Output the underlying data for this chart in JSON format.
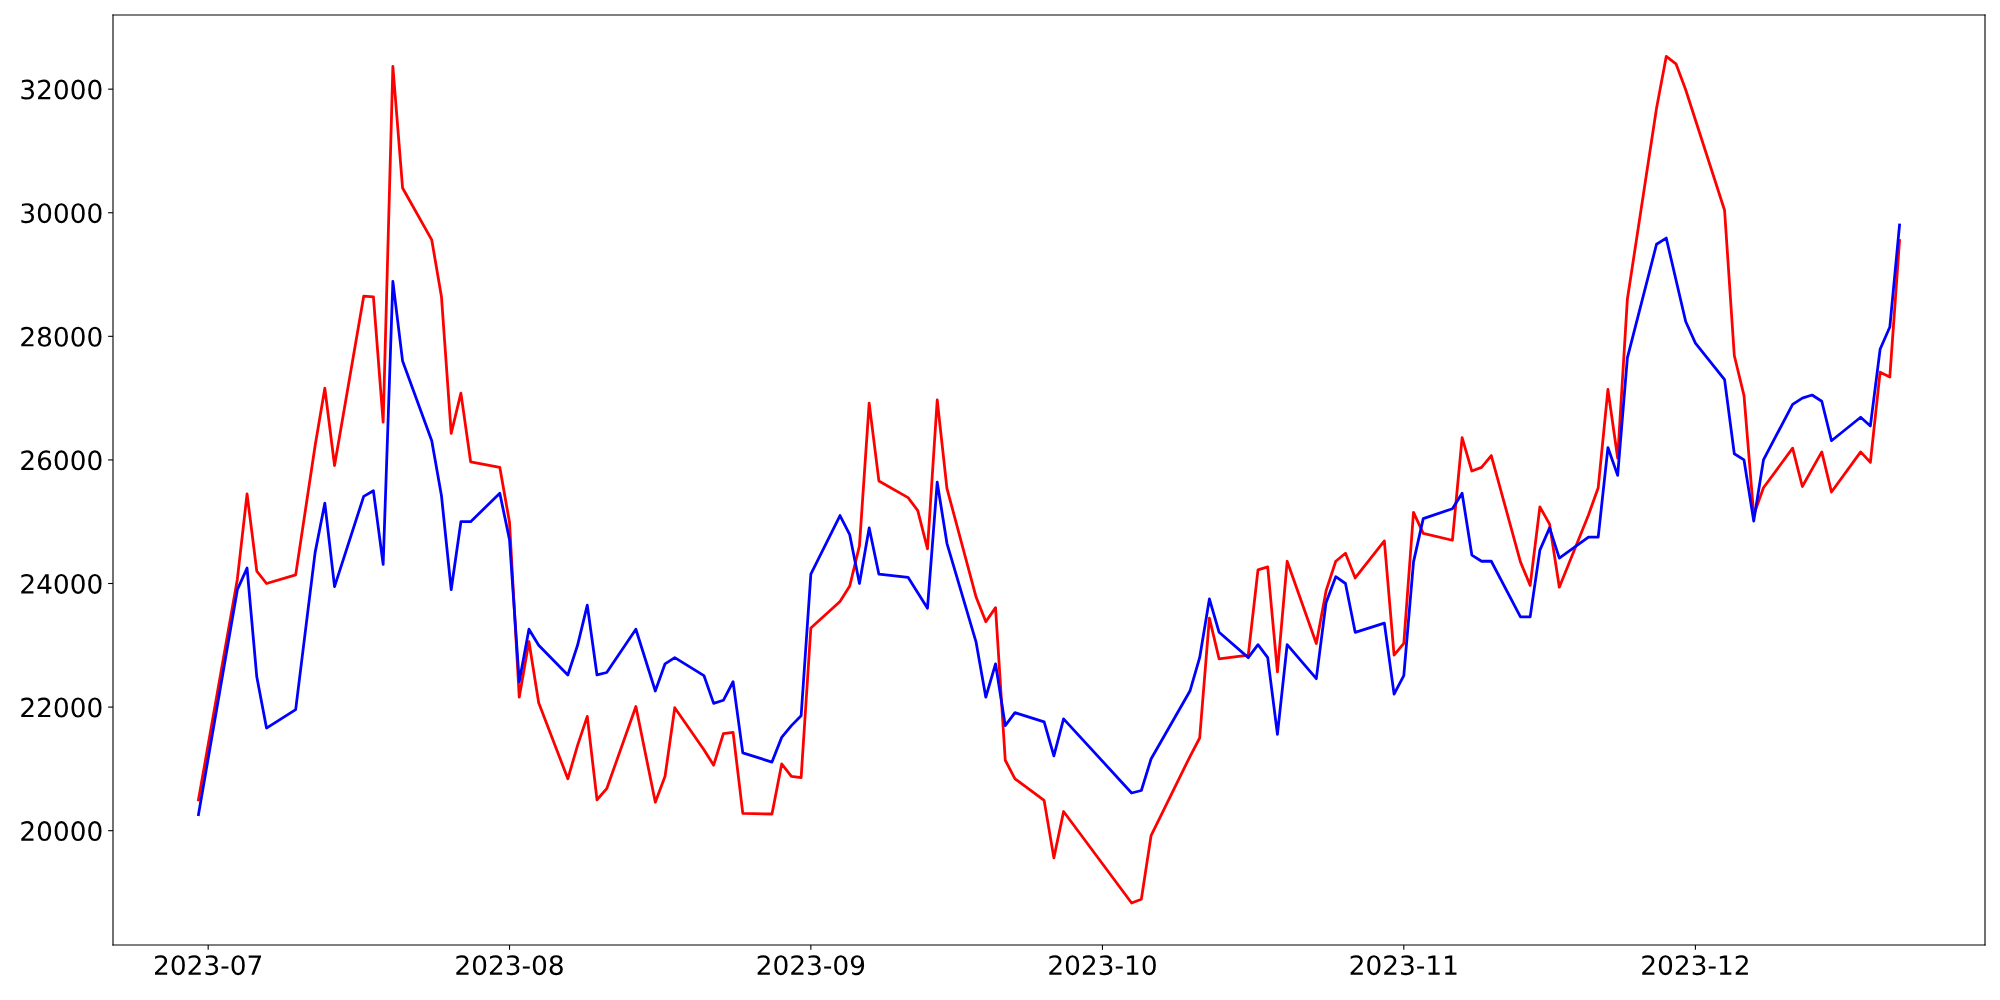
{
  "chart_data": {
    "type": "line",
    "xlim": [
      "2023-06-21T05:00",
      "2023-12-30T19:00"
    ],
    "ylim": [
      18150,
      33200
    ],
    "xticks": [
      "2023-07",
      "2023-08",
      "2023-09",
      "2023-10",
      "2023-11",
      "2023-12"
    ],
    "yticks": [
      20000,
      22000,
      24000,
      26000,
      28000,
      30000,
      32000
    ],
    "marker": "none",
    "line_style": "solid",
    "series": [
      {
        "color": "#ff0000",
        "x": [
          "2023-06-30",
          "2023-07-04",
          "2023-07-05",
          "2023-07-06",
          "2023-07-07",
          "2023-07-10",
          "2023-07-12",
          "2023-07-13",
          "2023-07-14",
          "2023-07-17",
          "2023-07-18",
          "2023-07-19",
          "2023-07-20",
          "2023-07-21",
          "2023-07-24",
          "2023-07-25",
          "2023-07-26",
          "2023-07-27",
          "2023-07-28",
          "2023-07-31",
          "2023-08-01",
          "2023-08-02",
          "2023-08-03",
          "2023-08-04",
          "2023-08-07",
          "2023-08-08",
          "2023-08-09",
          "2023-08-10",
          "2023-08-11",
          "2023-08-14",
          "2023-08-16",
          "2023-08-17",
          "2023-08-18",
          "2023-08-21",
          "2023-08-22",
          "2023-08-23",
          "2023-08-24",
          "2023-08-25",
          "2023-08-28",
          "2023-08-29",
          "2023-08-30",
          "2023-08-31",
          "2023-09-01",
          "2023-09-04",
          "2023-09-05",
          "2023-09-06",
          "2023-09-07",
          "2023-09-08",
          "2023-09-11",
          "2023-09-12",
          "2023-09-13",
          "2023-09-14",
          "2023-09-15",
          "2023-09-18",
          "2023-09-19",
          "2023-09-20",
          "2023-09-21",
          "2023-09-22",
          "2023-09-25",
          "2023-09-26",
          "2023-09-27",
          "2023-10-04",
          "2023-10-05",
          "2023-10-06",
          "2023-10-10",
          "2023-10-11",
          "2023-10-12",
          "2023-10-13",
          "2023-10-16",
          "2023-10-17",
          "2023-10-18",
          "2023-10-19",
          "2023-10-20",
          "2023-10-23",
          "2023-10-24",
          "2023-10-25",
          "2023-10-26",
          "2023-10-27",
          "2023-10-30",
          "2023-10-31",
          "2023-11-01",
          "2023-11-02",
          "2023-11-03",
          "2023-11-06",
          "2023-11-07",
          "2023-11-08",
          "2023-11-09",
          "2023-11-10",
          "2023-11-13",
          "2023-11-14",
          "2023-11-15",
          "2023-11-16",
          "2023-11-17",
          "2023-11-20",
          "2023-11-21",
          "2023-11-22",
          "2023-11-23",
          "2023-11-24",
          "2023-11-27",
          "2023-11-28",
          "2023-11-29",
          "2023-11-30",
          "2023-12-04",
          "2023-12-05",
          "2023-12-06",
          "2023-12-07",
          "2023-12-08",
          "2023-12-11",
          "2023-12-12",
          "2023-12-13",
          "2023-12-14",
          "2023-12-15",
          "2023-12-18",
          "2023-12-19",
          "2023-12-20",
          "2023-12-21",
          "2023-12-22"
        ],
        "values": [
          20500,
          24070,
          25450,
          24200,
          24000,
          24140,
          26230,
          27160,
          25910,
          28650,
          28640,
          26610,
          32370,
          30400,
          29560,
          28640,
          26430,
          27080,
          25970,
          25880,
          24990,
          22160,
          23060,
          22070,
          20840,
          21380,
          21850,
          20500,
          20680,
          22010,
          20460,
          20880,
          21990,
          21310,
          21060,
          21570,
          21590,
          20280,
          20270,
          21080,
          20880,
          20860,
          23280,
          23710,
          23960,
          24610,
          26920,
          25660,
          25390,
          25180,
          24560,
          26970,
          25540,
          23780,
          23380,
          23610,
          21140,
          20840,
          20490,
          19560,
          20310,
          18830,
          18890,
          19920,
          21200,
          21500,
          23440,
          22780,
          22840,
          24220,
          24270,
          22570,
          24360,
          23030,
          23880,
          24360,
          24490,
          24090,
          24690,
          22840,
          23030,
          25150,
          24810,
          24700,
          26360,
          25820,
          25880,
          26070,
          24350,
          23970,
          25240,
          24960,
          23940,
          25110,
          25550,
          27140,
          26030,
          28600,
          31690,
          32530,
          32410,
          31990,
          30040,
          27690,
          27040,
          25110,
          25550,
          26190,
          25570,
          25850,
          26130,
          25480,
          26130,
          25960,
          27420,
          27340,
          29550
        ]
      },
      {
        "color": "#0000ff",
        "x": [
          "2023-06-30",
          "2023-07-04",
          "2023-07-05",
          "2023-07-06",
          "2023-07-07",
          "2023-07-10",
          "2023-07-12",
          "2023-07-13",
          "2023-07-14",
          "2023-07-17",
          "2023-07-18",
          "2023-07-19",
          "2023-07-20",
          "2023-07-21",
          "2023-07-24",
          "2023-07-25",
          "2023-07-26",
          "2023-07-27",
          "2023-07-28",
          "2023-07-31",
          "2023-08-01",
          "2023-08-02",
          "2023-08-03",
          "2023-08-04",
          "2023-08-07",
          "2023-08-08",
          "2023-08-09",
          "2023-08-10",
          "2023-08-11",
          "2023-08-14",
          "2023-08-16",
          "2023-08-17",
          "2023-08-18",
          "2023-08-21",
          "2023-08-22",
          "2023-08-23",
          "2023-08-24",
          "2023-08-25",
          "2023-08-28",
          "2023-08-29",
          "2023-08-30",
          "2023-08-31",
          "2023-09-01",
          "2023-09-04",
          "2023-09-05",
          "2023-09-06",
          "2023-09-07",
          "2023-09-08",
          "2023-09-11",
          "2023-09-13",
          "2023-09-14",
          "2023-09-15",
          "2023-09-18",
          "2023-09-19",
          "2023-09-20",
          "2023-09-21",
          "2023-09-22",
          "2023-09-25",
          "2023-09-26",
          "2023-09-27",
          "2023-10-04",
          "2023-10-05",
          "2023-10-06",
          "2023-10-10",
          "2023-10-11",
          "2023-10-12",
          "2023-10-13",
          "2023-10-16",
          "2023-10-17",
          "2023-10-18",
          "2023-10-19",
          "2023-10-20",
          "2023-10-23",
          "2023-10-24",
          "2023-10-25",
          "2023-10-26",
          "2023-10-27",
          "2023-10-30",
          "2023-10-31",
          "2023-11-01",
          "2023-11-02",
          "2023-11-03",
          "2023-11-06",
          "2023-11-07",
          "2023-11-08",
          "2023-11-09",
          "2023-11-10",
          "2023-11-13",
          "2023-11-14",
          "2023-11-15",
          "2023-11-16",
          "2023-11-17",
          "2023-11-20",
          "2023-11-21",
          "2023-11-22",
          "2023-11-23",
          "2023-11-24",
          "2023-11-27",
          "2023-11-28",
          "2023-11-30",
          "2023-12-01",
          "2023-12-04",
          "2023-12-05",
          "2023-12-06",
          "2023-12-07",
          "2023-12-08",
          "2023-12-11",
          "2023-12-12",
          "2023-12-13",
          "2023-12-14",
          "2023-12-15",
          "2023-12-18",
          "2023-12-19",
          "2023-12-20",
          "2023-12-21",
          "2023-12-22"
        ],
        "values": [
          20260,
          23900,
          24250,
          22490,
          21660,
          21960,
          24500,
          25300,
          23950,
          25410,
          25500,
          24310,
          28890,
          27600,
          26310,
          25420,
          23900,
          25000,
          25000,
          25460,
          24710,
          22410,
          23260,
          23000,
          22520,
          23000,
          23650,
          22520,
          22560,
          23260,
          22260,
          22700,
          22800,
          22510,
          22060,
          22110,
          22410,
          21260,
          21110,
          21510,
          21700,
          21860,
          24150,
          25100,
          24790,
          24000,
          24900,
          24150,
          24100,
          23600,
          25640,
          24650,
          23050,
          22160,
          22700,
          21700,
          21910,
          21760,
          21210,
          21810,
          20610,
          20650,
          21160,
          22260,
          22800,
          23750,
          23210,
          22800,
          23010,
          22800,
          21560,
          23010,
          22460,
          23690,
          24110,
          24000,
          23210,
          23360,
          22210,
          22510,
          24350,
          25050,
          25210,
          25460,
          24460,
          24360,
          24360,
          23460,
          23460,
          24540,
          24900,
          24410,
          24750,
          24750,
          26200,
          25750,
          27650,
          29490,
          29590,
          28240,
          27890,
          27300,
          26100,
          26000,
          25010,
          26000,
          26900,
          27000,
          27050,
          26950,
          26310,
          26690,
          26550,
          27790,
          28150,
          29800
        ]
      }
    ]
  }
}
